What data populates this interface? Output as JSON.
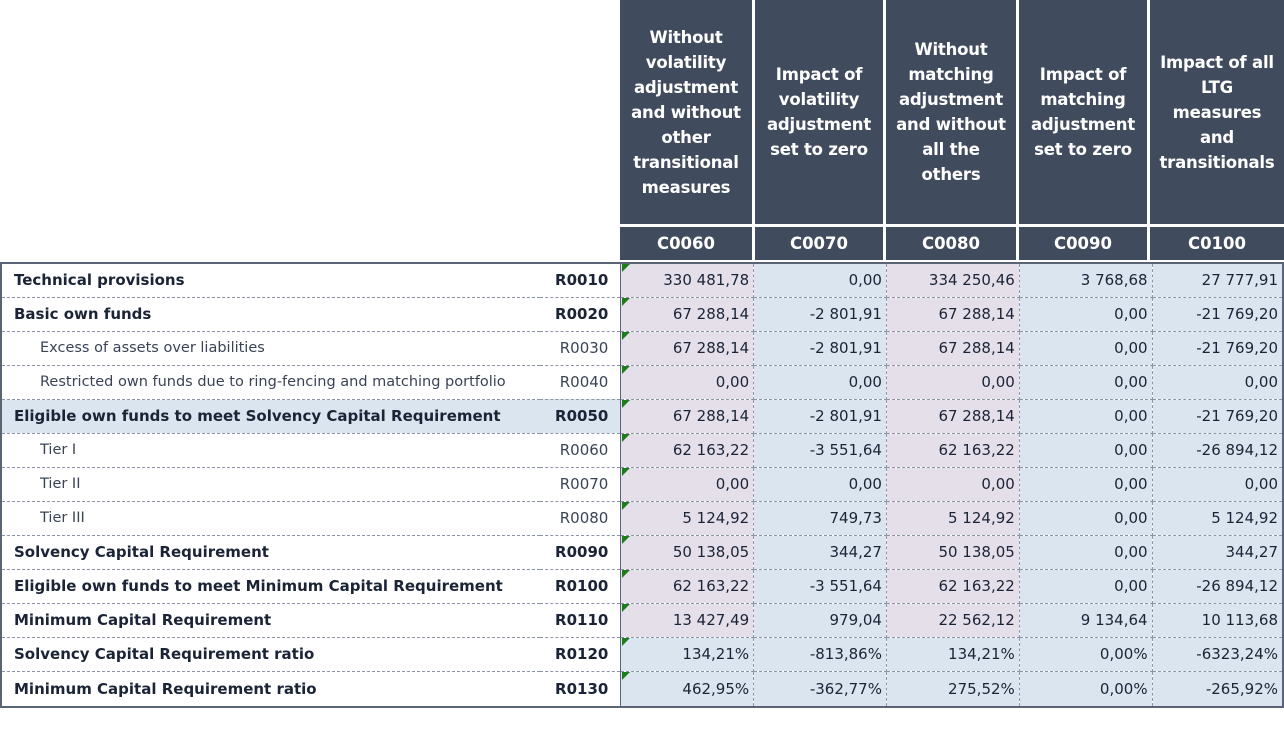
{
  "columns": [
    {
      "title": "Without volatility adjustment and without other transitional measures",
      "code": "C0060"
    },
    {
      "title": "Impact of volatility adjustment set to zero",
      "code": "C0070"
    },
    {
      "title": "Without matching adjustment and without all the others",
      "code": "C0080"
    },
    {
      "title": "Impact of matching adjustment set to zero",
      "code": "C0090"
    },
    {
      "title": "Impact of all LTG measures and transitionals",
      "code": "C0100"
    }
  ],
  "rows": [
    {
      "label": "Technical provisions",
      "code": "R0010",
      "values": [
        "330 481,78",
        "0,00",
        "334 250,46",
        "3 768,68",
        "27 777,91"
      ]
    },
    {
      "label": "Basic own funds",
      "code": "R0020",
      "values": [
        "67 288,14",
        "-2 801,91",
        "67 288,14",
        "0,00",
        "-21 769,20"
      ]
    },
    {
      "label": "Excess of assets over liabilities",
      "code": "R0030",
      "values": [
        "67 288,14",
        "-2 801,91",
        "67 288,14",
        "0,00",
        "-21 769,20"
      ]
    },
    {
      "label": "Restricted own funds due to ring-fencing and matching portfolio",
      "code": "R0040",
      "values": [
        "0,00",
        "0,00",
        "0,00",
        "0,00",
        "0,00"
      ]
    },
    {
      "label": "Eligible own funds to meet Solvency Capital Requirement",
      "code": "R0050",
      "values": [
        "67 288,14",
        "-2 801,91",
        "67 288,14",
        "0,00",
        "-21 769,20"
      ]
    },
    {
      "label": "Tier I",
      "code": "R0060",
      "values": [
        "62 163,22",
        "-3 551,64",
        "62 163,22",
        "0,00",
        "-26 894,12"
      ]
    },
    {
      "label": "Tier II",
      "code": "R0070",
      "values": [
        "0,00",
        "0,00",
        "0,00",
        "0,00",
        "0,00"
      ]
    },
    {
      "label": "Tier III",
      "code": "R0080",
      "values": [
        "5 124,92",
        "749,73",
        "5 124,92",
        "0,00",
        "5 124,92"
      ]
    },
    {
      "label": "Solvency Capital Requirement",
      "code": "R0090",
      "values": [
        "50 138,05",
        "344,27",
        "50 138,05",
        "0,00",
        "344,27"
      ]
    },
    {
      "label": "Eligible own funds to meet Minimum Capital Requirement",
      "code": "R0100",
      "values": [
        "62 163,22",
        "-3 551,64",
        "62 163,22",
        "0,00",
        "-26 894,12"
      ]
    },
    {
      "label": "Minimum Capital Requirement",
      "code": "R0110",
      "values": [
        "13 427,49",
        "979,04",
        "22 562,12",
        "9 134,64",
        "10 113,68"
      ]
    },
    {
      "label": "Solvency Capital Requirement ratio",
      "code": "R0120",
      "values": [
        "134,21%",
        "-813,86%",
        "134,21%",
        "0,00%",
        "-6323,24%"
      ]
    },
    {
      "label": "Minimum Capital Requirement ratio",
      "code": "R0130",
      "values": [
        "462,95%",
        "-362,77%",
        "275,52%",
        "0,00%",
        "-265,92%"
      ]
    }
  ],
  "colors": {
    "header_bg": "#414b5e",
    "header_text": "#ffffff",
    "cell_blue": "#dae5f0",
    "cell_pink": "#e5dfea",
    "marker_green": "#1e7b1e"
  }
}
